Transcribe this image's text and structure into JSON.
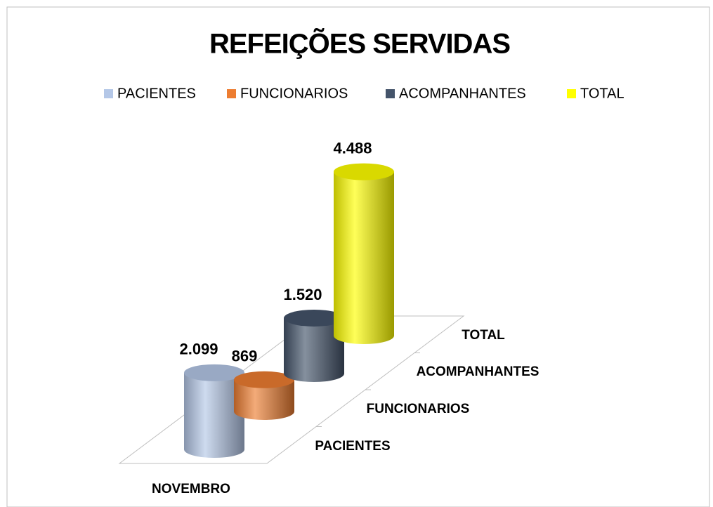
{
  "chart_data": {
    "type": "bar3d",
    "title": "REFEIÇÕES SERVIDAS",
    "categories": [
      "NOVEMBRO"
    ],
    "series": [
      {
        "name": "PACIENTES",
        "color": "#b4c7e7",
        "values": [
          2099
        ],
        "value_labels": [
          "2.099"
        ]
      },
      {
        "name": "FUNCIONARIOS",
        "color": "#ed7d31",
        "values": [
          869
        ],
        "value_labels": [
          "869"
        ]
      },
      {
        "name": "ACOMPANHANTES",
        "color": "#44546a",
        "values": [
          1520
        ],
        "value_labels": [
          "1.520"
        ]
      },
      {
        "name": "TOTAL",
        "color": "#ffff00",
        "values": [
          4488
        ],
        "value_labels": [
          "4.488"
        ]
      }
    ],
    "legend": "top"
  }
}
